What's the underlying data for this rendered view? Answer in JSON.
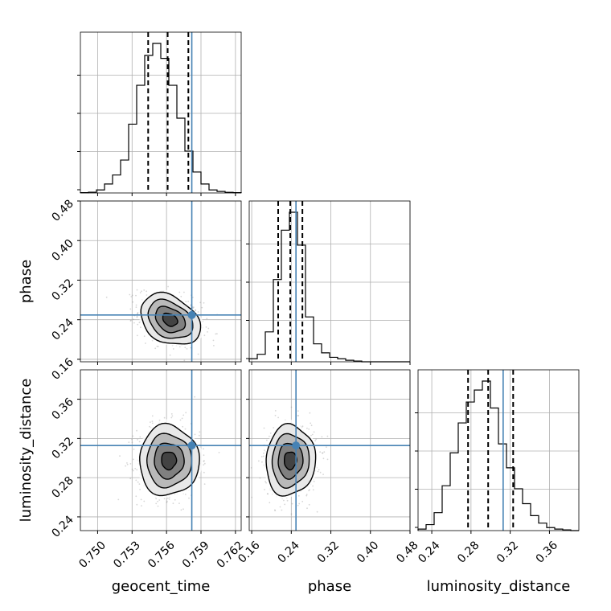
{
  "chart_data": {
    "type": "corner",
    "parameters": [
      "geocent_time",
      "phase",
      "luminosity_distance"
    ],
    "truths": {
      "geocent_time": 0.7582,
      "phase": 0.2495,
      "luminosity_distance": 0.3128
    },
    "quantiles": {
      "geocent_time": [
        0.7544,
        0.7561,
        0.7579
      ],
      "phase": [
        0.2135,
        0.238,
        0.2625
      ],
      "luminosity_distance": [
        0.277,
        0.2975,
        0.323
      ]
    },
    "ranges": {
      "geocent_time": [
        0.7485,
        0.7625
      ],
      "phase": [
        0.155,
        0.48
      ],
      "luminosity_distance": [
        0.226,
        0.39
      ]
    },
    "ticks": {
      "geocent_time": {
        "values": [
          0.75,
          0.753,
          0.756,
          0.759,
          0.762
        ],
        "labels": [
          "0.750",
          "0.753",
          "0.756",
          "0.759",
          "0.762"
        ]
      },
      "phase": {
        "values": [
          0.16,
          0.24,
          0.32,
          0.4,
          0.48
        ],
        "labels": [
          "0.16",
          "0.24",
          "0.32",
          "0.40",
          "0.48"
        ]
      },
      "luminosity_distance": {
        "values": [
          0.24,
          0.28,
          0.32,
          0.36
        ],
        "labels": [
          "0.24",
          "0.28",
          "0.32",
          "0.36"
        ]
      }
    },
    "histograms": {
      "geocent_time": {
        "edges": [
          0.7485,
          0.7492,
          0.7499,
          0.7506,
          0.7513,
          0.752,
          0.7527,
          0.7534,
          0.7541,
          0.7548,
          0.7555,
          0.7562,
          0.7569,
          0.7576,
          0.7583,
          0.759,
          0.7597,
          0.7604,
          0.7611,
          0.7618,
          0.7625
        ],
        "counts": [
          0.002,
          0.005,
          0.02,
          0.06,
          0.12,
          0.22,
          0.46,
          0.72,
          0.92,
          1.0,
          0.9,
          0.72,
          0.5,
          0.28,
          0.14,
          0.06,
          0.02,
          0.01,
          0.004,
          0.002
        ]
      },
      "phase": {
        "edges": [
          0.155,
          0.17125,
          0.1875,
          0.20375,
          0.22,
          0.23625,
          0.2525,
          0.26875,
          0.285,
          0.30125,
          0.3175,
          0.33375,
          0.35,
          0.36625,
          0.3825,
          0.39875,
          0.415,
          0.43125,
          0.4475,
          0.46375,
          0.48
        ],
        "counts": [
          0.02,
          0.05,
          0.2,
          0.55,
          0.88,
          1.0,
          0.78,
          0.3,
          0.12,
          0.06,
          0.03,
          0.02,
          0.01,
          0.005,
          0.0,
          0.0,
          0.0,
          0.0,
          0.0,
          0.0
        ]
      },
      "luminosity_distance": {
        "edges": [
          0.226,
          0.2342,
          0.2424,
          0.2506,
          0.2588,
          0.267,
          0.2752,
          0.2834,
          0.2916,
          0.2998,
          0.308,
          0.3162,
          0.3244,
          0.3326,
          0.3408,
          0.349,
          0.3572,
          0.3654,
          0.3736,
          0.3818,
          0.39
        ],
        "counts": [
          0.01,
          0.04,
          0.12,
          0.3,
          0.52,
          0.72,
          0.86,
          0.94,
          1.0,
          0.82,
          0.58,
          0.42,
          0.28,
          0.18,
          0.1,
          0.05,
          0.02,
          0.01,
          0.005,
          0.0
        ]
      }
    },
    "joint": {
      "phase_vs_geocent_time": {
        "mean": [
          0.7563,
          0.24
        ],
        "std": [
          0.0013,
          0.026
        ],
        "corr": -0.3
      },
      "luminosity_distance_vs_geocent_time": {
        "mean": [
          0.7562,
          0.2975
        ],
        "std": [
          0.0013,
          0.018
        ],
        "corr": 0.0
      },
      "luminosity_distance_vs_phase": {
        "mean": [
          0.238,
          0.2975
        ],
        "std": [
          0.025,
          0.018
        ],
        "corr": 0.05
      }
    },
    "contour_levels_sigma": [
      0.5,
      1.0,
      1.5,
      2.0
    ]
  },
  "labels": {
    "x_geocent_time": "geocent_time",
    "x_phase": "phase",
    "x_luminosity_distance": "luminosity_distance",
    "y_phase": "phase",
    "y_luminosity_distance": "luminosity_distance"
  },
  "colors": {
    "truth": "#4682b4",
    "contour": "#000000",
    "hist": "#000000",
    "grid": "#b0b0b0"
  }
}
